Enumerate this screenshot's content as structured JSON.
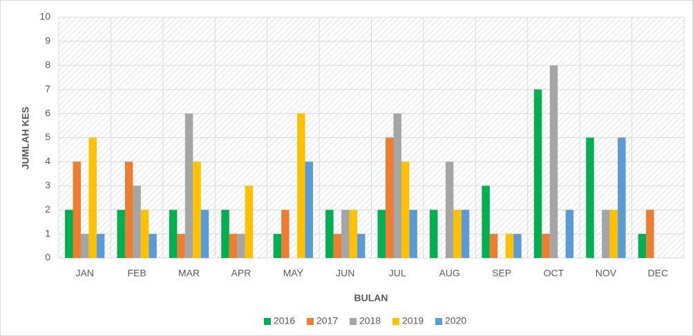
{
  "chart_data": {
    "type": "bar",
    "y_label": "JUMLAH KES",
    "x_label": "BULAN",
    "categories": [
      "JAN",
      "FEB",
      "MAR",
      "APR",
      "MAY",
      "JUN",
      "JUL",
      "AUG",
      "SEP",
      "OCT",
      "NOV",
      "DEC"
    ],
    "series": [
      {
        "name": "2016",
        "color": "#00b050",
        "values": [
          2,
          2,
          2,
          2,
          1,
          2,
          2,
          2,
          3,
          7,
          5,
          1
        ]
      },
      {
        "name": "2017",
        "color": "#ed7d31",
        "values": [
          4,
          4,
          1,
          1,
          2,
          1,
          5,
          0,
          1,
          1,
          0,
          2
        ]
      },
      {
        "name": "2018",
        "color": "#a5a5a5",
        "values": [
          1,
          3,
          6,
          1,
          0,
          2,
          6,
          4,
          0,
          8,
          2,
          0
        ]
      },
      {
        "name": "2019",
        "color": "#ffc000",
        "values": [
          5,
          2,
          4,
          3,
          6,
          2,
          4,
          2,
          1,
          0,
          2,
          0
        ]
      },
      {
        "name": "2020",
        "color": "#5b9bd5",
        "values": [
          1,
          1,
          2,
          0,
          4,
          1,
          2,
          2,
          1,
          2,
          5,
          0
        ]
      }
    ],
    "ylim": [
      0,
      10
    ],
    "yticks": [
      0,
      1,
      2,
      3,
      4,
      5,
      6,
      7,
      8,
      9,
      10
    ],
    "grid": true,
    "legend": "bottom"
  }
}
